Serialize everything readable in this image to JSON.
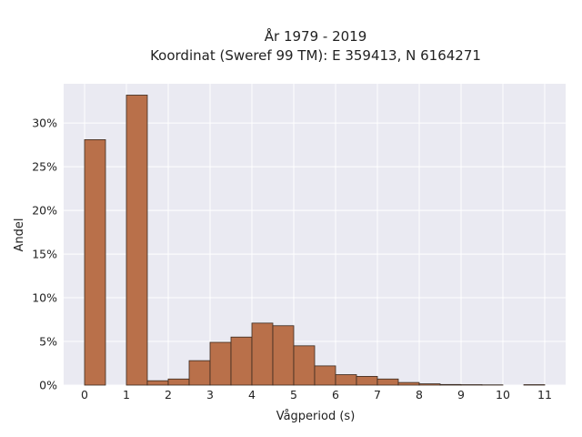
{
  "chart_data": {
    "type": "bar",
    "title_line1": "År 1979 - 2019",
    "title_line2": "Koordinat (Sweref 99 TM): E 359413, N 6164271",
    "xlabel": "Vågperiod (s)",
    "ylabel": "Andel",
    "bin_width": 0.5,
    "bins": [
      {
        "start": 0.0,
        "value": 28.1
      },
      {
        "start": 0.5,
        "value": 0.0
      },
      {
        "start": 1.0,
        "value": 33.2
      },
      {
        "start": 1.5,
        "value": 0.5
      },
      {
        "start": 2.0,
        "value": 0.7
      },
      {
        "start": 2.5,
        "value": 2.8
      },
      {
        "start": 3.0,
        "value": 4.9
      },
      {
        "start": 3.5,
        "value": 5.5
      },
      {
        "start": 4.0,
        "value": 7.1
      },
      {
        "start": 4.5,
        "value": 6.8
      },
      {
        "start": 5.0,
        "value": 4.5
      },
      {
        "start": 5.5,
        "value": 2.2
      },
      {
        "start": 6.0,
        "value": 1.2
      },
      {
        "start": 6.5,
        "value": 1.0
      },
      {
        "start": 7.0,
        "value": 0.7
      },
      {
        "start": 7.5,
        "value": 0.3
      },
      {
        "start": 8.0,
        "value": 0.15
      },
      {
        "start": 8.5,
        "value": 0.07
      },
      {
        "start": 9.0,
        "value": 0.05
      },
      {
        "start": 9.5,
        "value": 0.03
      },
      {
        "start": 10.0,
        "value": 0.0
      },
      {
        "start": 10.5,
        "value": 0.05
      }
    ],
    "xlim": [
      -0.5,
      11.5
    ],
    "ylim": [
      0,
      34.5
    ],
    "xticks": [
      0,
      1,
      2,
      3,
      4,
      5,
      6,
      7,
      8,
      9,
      10,
      11
    ],
    "xtick_labels": [
      "0",
      "1",
      "2",
      "3",
      "4",
      "5",
      "6",
      "7",
      "8",
      "9",
      "10",
      "11"
    ],
    "yticks": [
      0,
      5,
      10,
      15,
      20,
      25,
      30
    ],
    "ytick_labels": [
      "0%",
      "5%",
      "10%",
      "15%",
      "20%",
      "25%",
      "30%"
    ],
    "grid": true,
    "colors": {
      "bar_fill": "#b9704a",
      "bar_edge": "#3a2a20",
      "plot_background": "#eaeaf2",
      "grid": "#ffffff"
    }
  }
}
